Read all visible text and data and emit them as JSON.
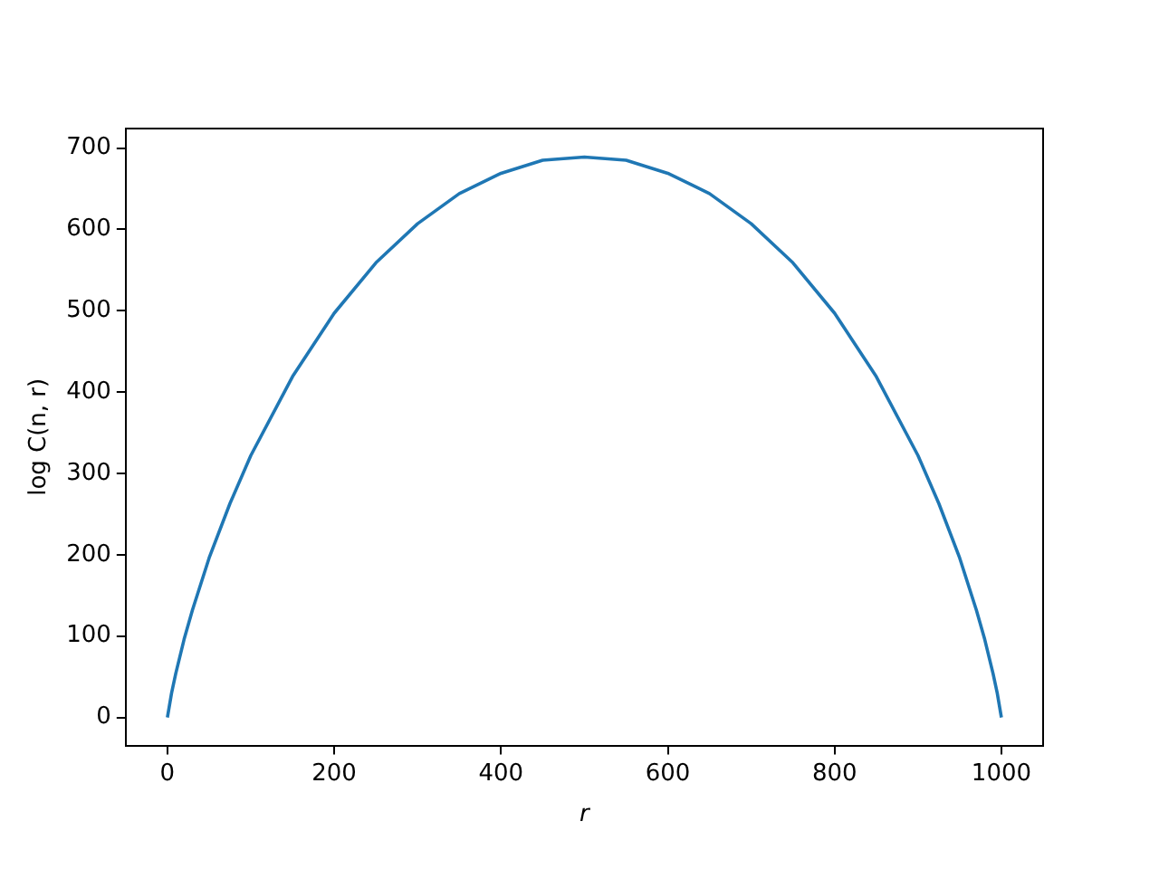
{
  "chart_data": {
    "type": "line",
    "xlabel": "r",
    "ylabel": "log C(n, r)",
    "x": [
      0,
      5,
      10,
      20,
      30,
      50,
      75,
      100,
      150,
      200,
      250,
      300,
      350,
      400,
      450,
      500,
      550,
      600,
      650,
      700,
      750,
      800,
      850,
      900,
      925,
      950,
      970,
      980,
      990,
      995,
      1000
    ],
    "series": [
      {
        "color": "#1f77b4",
        "values": [
          0,
          30,
          54,
          96,
          132,
          196,
          263,
          322,
          419,
          497,
          559,
          607,
          644,
          669,
          685,
          689,
          685,
          669,
          644,
          607,
          559,
          497,
          419,
          322,
          263,
          196,
          132,
          96,
          54,
          30,
          0
        ]
      }
    ],
    "xlim": [
      -50,
      1050
    ],
    "xticks": [
      0,
      200,
      400,
      600,
      800,
      1000
    ],
    "ylim": [
      -34.5,
      724
    ],
    "yticks": [
      0,
      100,
      200,
      300,
      400,
      500,
      600,
      700
    ],
    "grid": false,
    "legend": false,
    "marker": "none",
    "line_style": "solid"
  }
}
